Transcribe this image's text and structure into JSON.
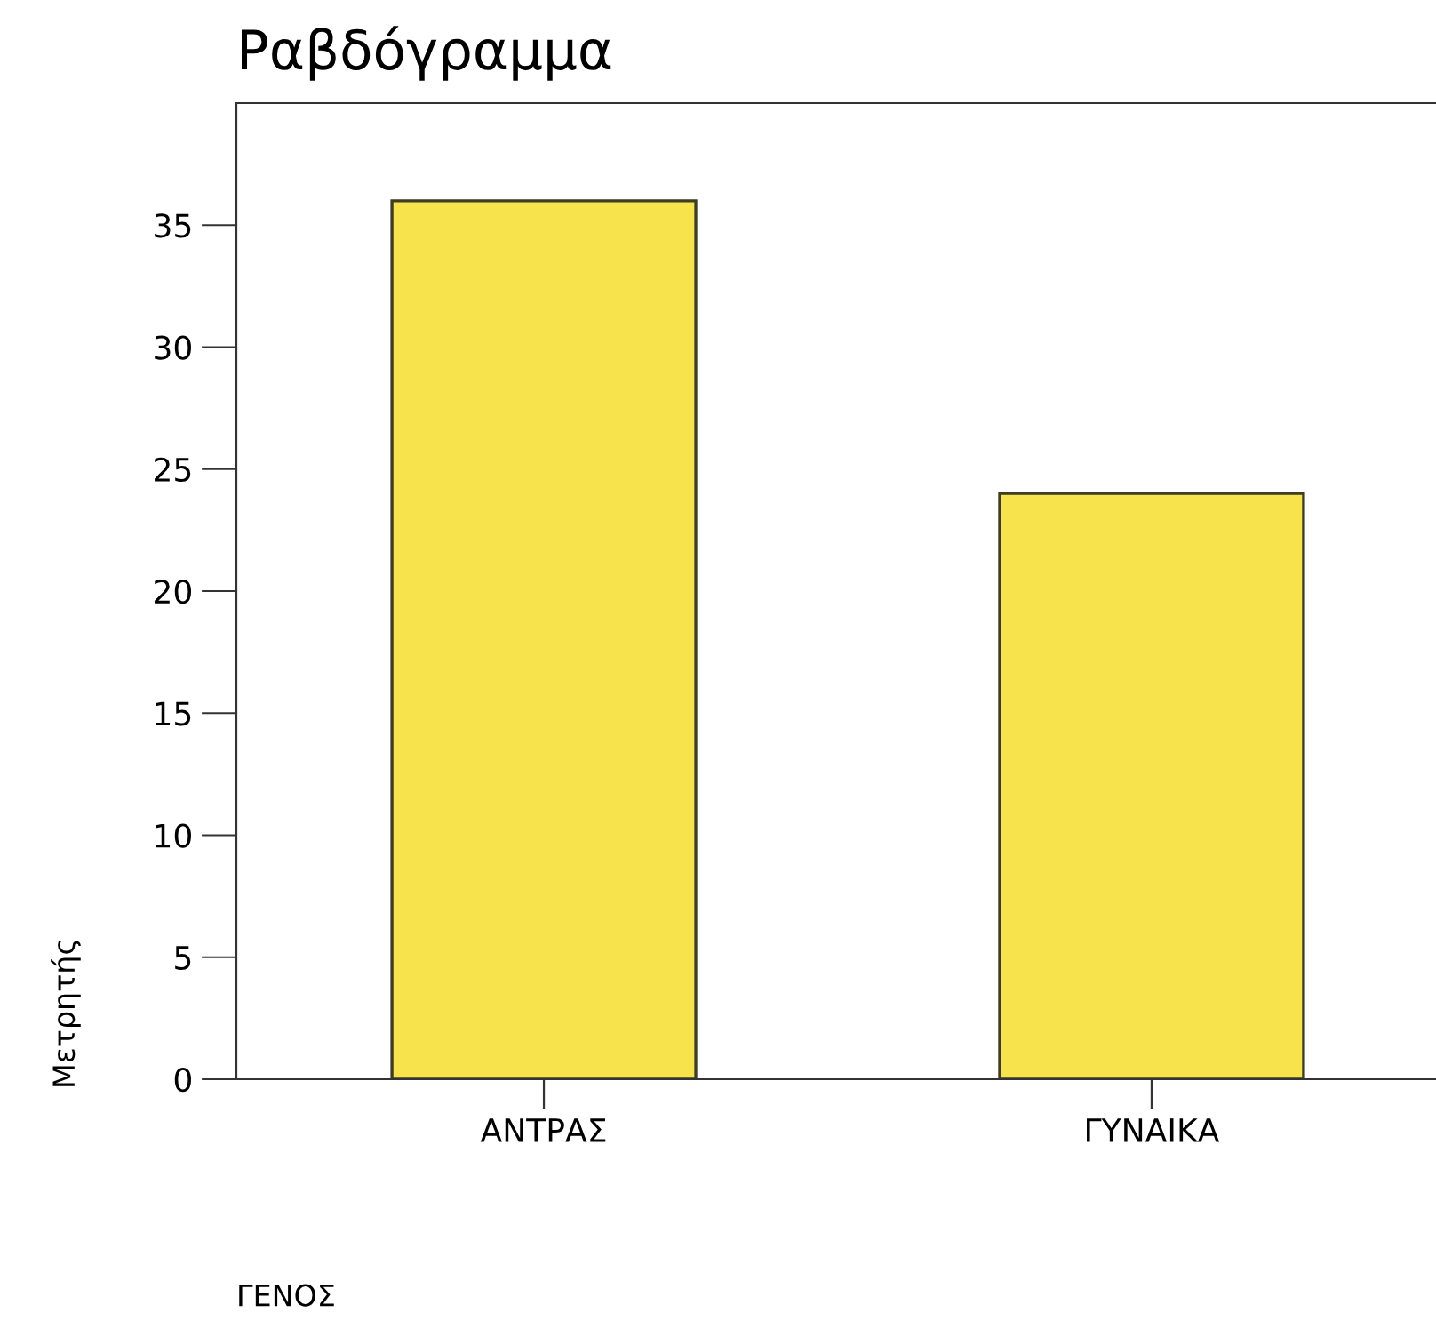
{
  "chart_data": {
    "type": "bar",
    "title": "Ραβδόγραμμα",
    "xlabel": "ΓΕΝΟΣ",
    "ylabel": "Μετρητής",
    "categories": [
      "ΑΝΤΡΑΣ",
      "ΓΥΝΑΙΚΑ"
    ],
    "values": [
      36,
      24
    ],
    "color": "#f7e34c",
    "ylim": [
      0,
      40
    ],
    "yticks": [
      0,
      5,
      10,
      15,
      20,
      25,
      30,
      35
    ],
    "grid": false,
    "legend": false
  }
}
